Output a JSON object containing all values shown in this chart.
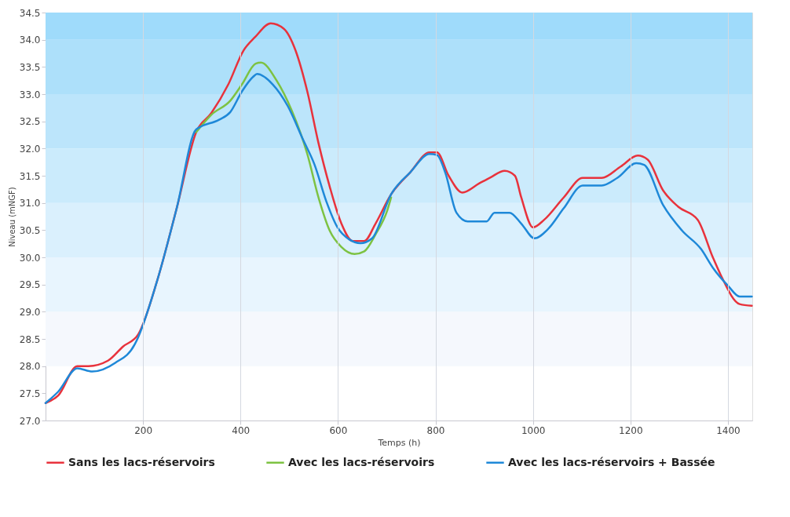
{
  "chart_data": {
    "type": "line",
    "xlabel": "Temps (h)",
    "ylabel": "Niveau (mNGF)",
    "xlim": [
      0,
      1450
    ],
    "ylim": [
      27.0,
      34.5
    ],
    "xticks": [
      200,
      400,
      600,
      800,
      1000,
      1200,
      1400
    ],
    "yticks": [
      {
        "value": 27,
        "label": "27.0"
      },
      27.5,
      {
        "value": 28,
        "label": "28.0"
      },
      28.5,
      {
        "value": 29,
        "label": "29.0"
      },
      29.5,
      {
        "value": 30,
        "label": "30.0"
      },
      30.5,
      {
        "value": 31,
        "label": "31.0"
      },
      31.5,
      {
        "value": 32,
        "label": "32.0"
      },
      32.5,
      {
        "value": 33,
        "label": "33.0"
      },
      33.5,
      {
        "value": 34,
        "label": "34.0"
      },
      34.5
    ],
    "grid": "x",
    "legend": "bottom",
    "line_style": "solid",
    "marker": "none",
    "bands": [
      {
        "axis": "y",
        "from": 28,
        "to": 29,
        "color": "#f5f8fd"
      },
      {
        "axis": "y",
        "from": 29,
        "to": 30,
        "color": "#e8f5fe"
      },
      {
        "axis": "y",
        "from": 30,
        "to": 31,
        "color": "#daf0fd"
      },
      {
        "axis": "y",
        "from": 31,
        "to": 32,
        "color": "#cbebfc"
      },
      {
        "axis": "y",
        "from": 32,
        "to": 33,
        "color": "#bce5fb"
      },
      {
        "axis": "y",
        "from": 33,
        "to": 34,
        "color": "#ade0fa"
      },
      {
        "axis": "y",
        "from": 34,
        "to": 34.5,
        "color": "#9fdbfb"
      }
    ],
    "series": [
      {
        "name": "Sans les lacs-réservoirs",
        "color": "#e8323c",
        "x": [
          0,
          26,
          65,
          88,
          128,
          159,
          190,
          230,
          269,
          309,
          340,
          375,
          406,
          430,
          462,
          489,
          513,
          537,
          560,
          583,
          607,
          630,
          654,
          677,
          709,
          748,
          788,
          803,
          827,
          855,
          890,
          913,
          942,
          963,
          976,
          1000,
          1023,
          1063,
          1102,
          1141,
          1180,
          1215,
          1235,
          1267,
          1298,
          1338,
          1369,
          1385,
          1424,
          1449
        ],
        "values": [
          27.32,
          27.46,
          28.0,
          28.0,
          28.1,
          28.36,
          28.58,
          29.6,
          30.9,
          32.3,
          32.65,
          33.18,
          33.8,
          34.05,
          34.3,
          34.2,
          33.8,
          33.05,
          32.1,
          31.3,
          30.62,
          30.3,
          30.3,
          30.62,
          31.16,
          31.56,
          31.93,
          31.93,
          31.5,
          31.19,
          31.36,
          31.47,
          31.59,
          31.5,
          31.1,
          30.55,
          30.69,
          31.1,
          31.46,
          31.46,
          31.67,
          31.87,
          31.8,
          31.23,
          30.93,
          30.69,
          30.0,
          29.68,
          29.14,
          29.11
        ]
      },
      {
        "name": "Avec les lacs-réservoirs",
        "color": "#7dc242",
        "x": [
          309,
          340,
          379,
          403,
          431,
          442,
          474,
          505,
          537,
          560,
          583,
          607,
          634,
          654,
          677,
          701,
          709
        ],
        "values": [
          32.3,
          32.62,
          32.88,
          33.18,
          33.56,
          33.58,
          33.25,
          32.7,
          31.9,
          31.1,
          30.49,
          30.19,
          30.06,
          30.11,
          30.42,
          30.86,
          31.1
        ]
      },
      {
        "name": "Avec les lacs-réservoirs + Bassée",
        "color": "#1e88d8",
        "x": [
          0,
          26,
          65,
          96,
          143,
          183,
          190,
          230,
          269,
          309,
          356,
          379,
          403,
          426,
          434,
          466,
          497,
          528,
          552,
          576,
          599,
          623,
          646,
          670,
          709,
          748,
          788,
          803,
          820,
          843,
          866,
          905,
          921,
          952,
          976,
          1003,
          1031,
          1063,
          1102,
          1141,
          1173,
          1212,
          1228,
          1267,
          1306,
          1345,
          1369,
          1400,
          1424,
          1449
        ],
        "values": [
          27.32,
          27.53,
          27.96,
          27.9,
          28.06,
          28.4,
          28.53,
          29.6,
          30.9,
          32.35,
          32.53,
          32.67,
          33.05,
          33.32,
          33.37,
          33.18,
          32.78,
          32.17,
          31.7,
          31.03,
          30.55,
          30.33,
          30.26,
          30.35,
          31.16,
          31.56,
          31.9,
          31.88,
          31.56,
          30.82,
          30.66,
          30.66,
          30.82,
          30.82,
          30.62,
          30.35,
          30.52,
          30.9,
          31.32,
          31.32,
          31.46,
          31.73,
          31.7,
          30.96,
          30.49,
          30.15,
          29.81,
          29.48,
          29.28,
          29.28
        ]
      }
    ]
  }
}
